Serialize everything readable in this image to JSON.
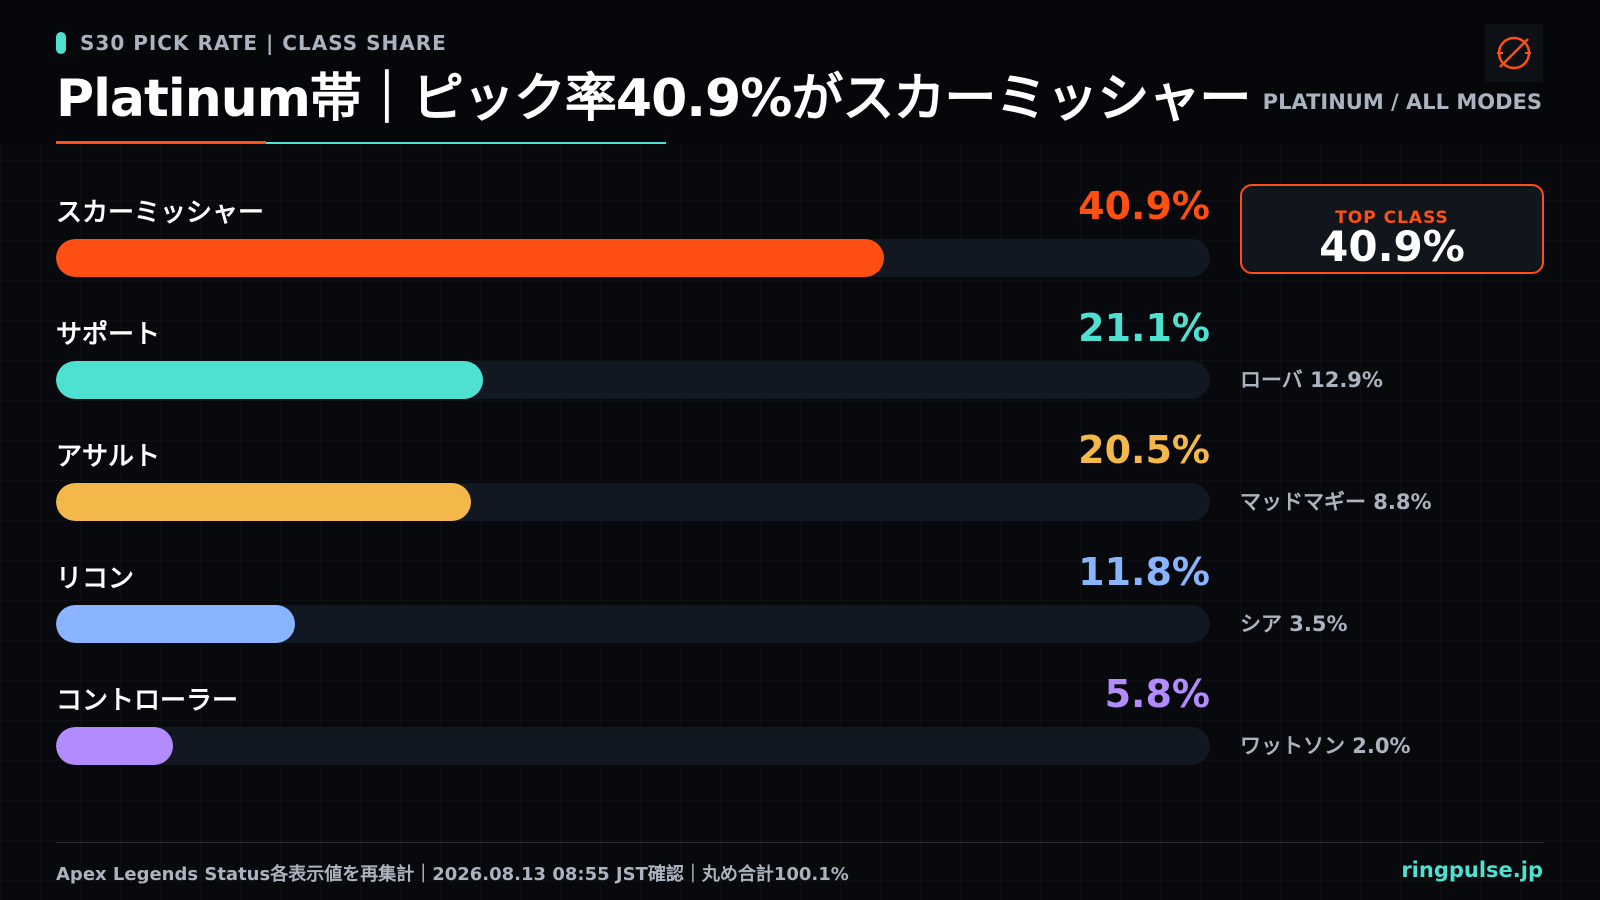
{
  "header": {
    "kicker": "S30 PICK RATE | CLASS SHARE",
    "title": "Platinum帯｜ピック率40.9%がスカーミッシャー",
    "filter": "PLATINUM / ALL MODES"
  },
  "top_card": {
    "label": "TOP CLASS",
    "value": "40.9%"
  },
  "side_notes": [
    "ローバ 12.9%",
    "マッドマギー 8.8%",
    "シア 3.5%",
    "ワットソン 2.0%"
  ],
  "chart_data": {
    "type": "bar",
    "orientation": "horizontal",
    "categories": [
      "スカーミッシャー",
      "サポート",
      "アサルト",
      "リコン",
      "コントローラー"
    ],
    "values": [
      40.9,
      21.1,
      20.5,
      11.8,
      5.8
    ],
    "value_labels": [
      "40.9%",
      "21.1%",
      "20.5%",
      "11.8%",
      "5.8%"
    ],
    "colors": [
      "#ff4f12",
      "#4ee0d0",
      "#f4b84a",
      "#8ab4ff",
      "#b28cff"
    ],
    "xlim": [
      0,
      57
    ]
  },
  "footer": {
    "source": "Apex Legends Status各表示値を再集計｜2026.08.13 08:55 JST確認｜丸め合計100.1%",
    "site": "ringpulse.jp"
  },
  "colors": {
    "accent": "#ff4f12",
    "teal": "#4ee0d0",
    "background": "#07090c",
    "track": "#121821",
    "muted_text": "#aab3bf"
  },
  "icons": {
    "logo": "crossed-circle-logo-icon"
  }
}
